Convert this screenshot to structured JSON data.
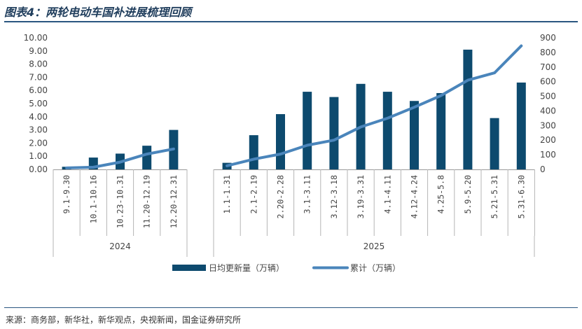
{
  "header": {
    "title": "图表4：两轮电动车国补进展梳理回顾"
  },
  "footer": {
    "source": "来源：商务部，新华社，新华观点，央视新闻，国金证券研究所"
  },
  "chart_data": {
    "type": "bar+line",
    "title": "",
    "groups": [
      {
        "label": "2024",
        "categories": [
          "9.1-9.30",
          "10.1-10.16",
          "10.23-10.31",
          "11.20-12.19",
          "12.20-12.31"
        ]
      },
      {
        "label": "2025",
        "categories": [
          "1.1-1.31",
          "2.1-2.19",
          "2.20-2.28",
          "3.1-3.11",
          "3.12-3.18",
          "3.19-3.31",
          "4.1-4.11",
          "4.12-4.24",
          "4.25-5.8",
          "5.9-5.20",
          "5.21-5.31",
          "5.31-6.30"
        ]
      }
    ],
    "series": [
      {
        "name": "日均更新量（万辆）",
        "type": "bar",
        "axis": "left",
        "color": "#0d4a6e",
        "values": [
          [
            0.2,
            0.9,
            1.2,
            1.8,
            3.0
          ],
          [
            0.5,
            2.6,
            4.2,
            5.9,
            5.5,
            6.5,
            5.9,
            5.2,
            5.8,
            9.1,
            3.9,
            6.6
          ]
        ]
      },
      {
        "name": "累计（万辆）",
        "type": "line",
        "axis": "right",
        "color": "#4a85bb",
        "values": [
          [
            10,
            15,
            50,
            105,
            140
          ],
          [
            25,
            70,
            105,
            165,
            200,
            290,
            350,
            425,
            505,
            610,
            660,
            845
          ]
        ]
      }
    ],
    "y_left": {
      "min": 0,
      "max": 10,
      "step": 1,
      "decimals": 2
    },
    "y_right": {
      "min": 0,
      "max": 900,
      "step": 100,
      "decimals": 0
    },
    "legend": {
      "position": "bottom",
      "bar_label": "日均更新量（万辆）",
      "line_label": "累计（万辆）"
    },
    "grid": false
  }
}
